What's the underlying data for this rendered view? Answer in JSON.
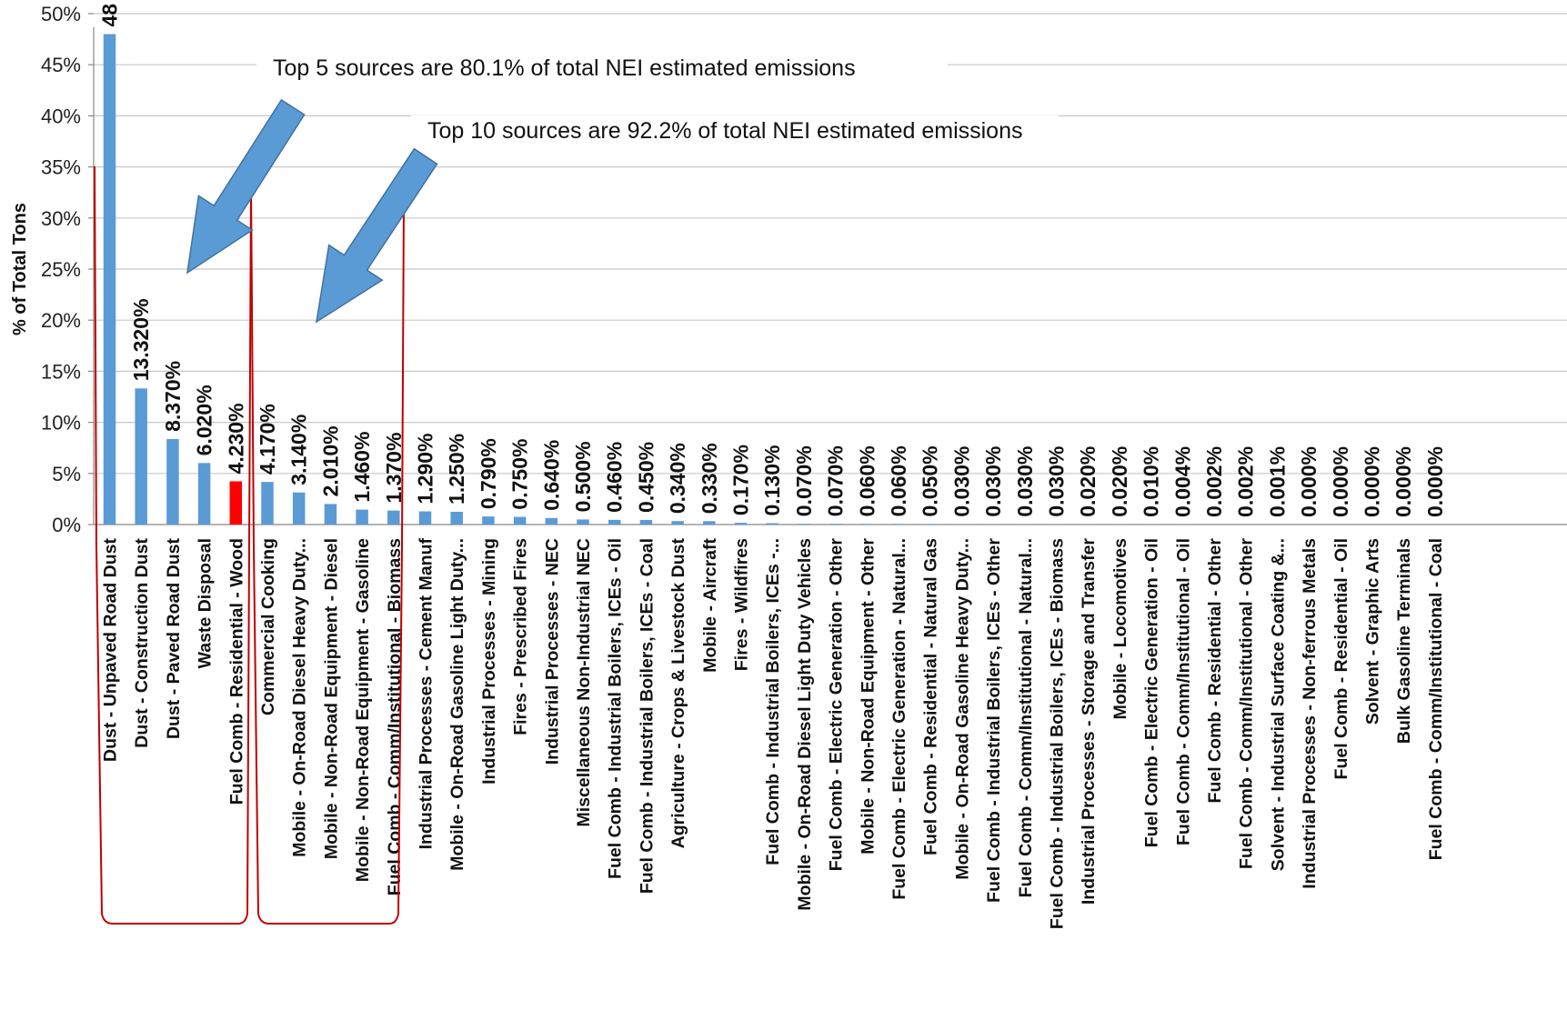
{
  "chart_data": {
    "type": "bar",
    "ylabel": "% of Total Tons",
    "xlabel": "",
    "ylim": [
      0,
      50
    ],
    "yticks": [
      0,
      5,
      10,
      15,
      20,
      25,
      30,
      35,
      40,
      45,
      50
    ],
    "ytick_labels": [
      "0%",
      "5%",
      "10%",
      "15%",
      "20%",
      "25%",
      "30%",
      "35%",
      "40%",
      "45%",
      "50%"
    ],
    "grid": true,
    "bar_color": "#5b9bd5",
    "highlight_color": "#ff0000",
    "highlight_index": 4,
    "bracket_color": "#c00000",
    "arrow_color": "#5b9bd5",
    "categories": [
      "Dust - Unpaved Road Dust",
      "Dust - Construction Dust",
      "Dust - Paved Road Dust",
      "Waste Disposal",
      "Fuel Comb - Residential - Wood",
      "Commercial Cooking",
      "Mobile - On-Road Diesel Heavy Duty...",
      "Mobile - Non-Road Equipment - Diesel",
      "Mobile - Non-Road Equipment - Gasoline",
      "Fuel Comb - Comm/Institutional - Biomass",
      "Industrial Processes - Cement Manuf",
      "Mobile - On-Road Gasoline Light Duty...",
      "Industrial Processes - Mining",
      "Fires - Prescribed Fires",
      "Industrial Processes - NEC",
      "Miscellaneous Non-Industrial NEC",
      "Fuel Comb - Industrial Boilers, ICEs - Oil",
      "Fuel Comb - Industrial Boilers, ICEs - Coal",
      "Agriculture - Crops & Livestock Dust",
      "Mobile - Aircraft",
      "Fires - Wildfires",
      "Fuel Comb - Industrial Boilers, ICEs -...",
      "Mobile - On-Road Diesel Light Duty Vehicles",
      "Fuel Comb - Electric Generation - Other",
      "Mobile - Non-Road Equipment - Other",
      "Fuel Comb - Electric Generation - Natural...",
      "Fuel Comb - Residential - Natural Gas",
      "Mobile - On-Road Gasoline Heavy Duty...",
      "Fuel Comb - Industrial Boilers, ICEs - Other",
      "Fuel Comb - Comm/Institutional - Natural...",
      "Fuel Comb - Industrial Boilers, ICEs - Biomass",
      "Industrial Processes - Storage and Transfer",
      "Mobile - Locomotives",
      "Fuel Comb - Electric Generation - Oil",
      "Fuel Comb - Comm/Institutional - Oil",
      "Fuel Comb - Residential - Other",
      "Fuel Comb - Comm/Institutional - Other",
      "Solvent - Industrial Surface Coating &...",
      "Industrial Processes - Non-ferrous Metals",
      "Fuel Comb - Residential - Oil",
      "Solvent - Graphic Arts",
      "Bulk Gasoline Terminals",
      "Fuel Comb - Comm/Institutional - Coal"
    ],
    "values": [
      48.0,
      13.32,
      8.37,
      6.02,
      4.23,
      4.17,
      3.14,
      2.01,
      1.46,
      1.37,
      1.29,
      1.25,
      0.79,
      0.75,
      0.64,
      0.5,
      0.46,
      0.45,
      0.34,
      0.33,
      0.17,
      0.13,
      0.07,
      0.07,
      0.06,
      0.06,
      0.05,
      0.03,
      0.03,
      0.03,
      0.03,
      0.02,
      0.02,
      0.01,
      0.004,
      0.002,
      0.002,
      0.001,
      0.0,
      0.0,
      0.0,
      0.0,
      0.0
    ],
    "data_labels": [
      "48",
      "13.320%",
      "8.370%",
      "6.020%",
      "4.230%",
      "4.170%",
      "3.140%",
      "2.010%",
      "1.460%",
      "1.370%",
      "1.290%",
      "1.250%",
      "0.790%",
      "0.750%",
      "0.640%",
      "0.500%",
      "0.460%",
      "0.450%",
      "0.340%",
      "0.330%",
      "0.170%",
      "0.130%",
      "0.070%",
      "0.070%",
      "0.060%",
      "0.060%",
      "0.050%",
      "0.030%",
      "0.030%",
      "0.030%",
      "0.030%",
      "0.020%",
      "0.020%",
      "0.010%",
      "0.004%",
      "0.002%",
      "0.002%",
      "0.001%",
      "0.000%",
      "0.000%",
      "0.000%",
      "0.000%",
      "0.000%"
    ],
    "annotations": [
      "Top 5 sources are 80.1% of total NEI estimated emissions",
      "Top 10 sources are 92.2% of total NEI estimated emissions"
    ]
  }
}
